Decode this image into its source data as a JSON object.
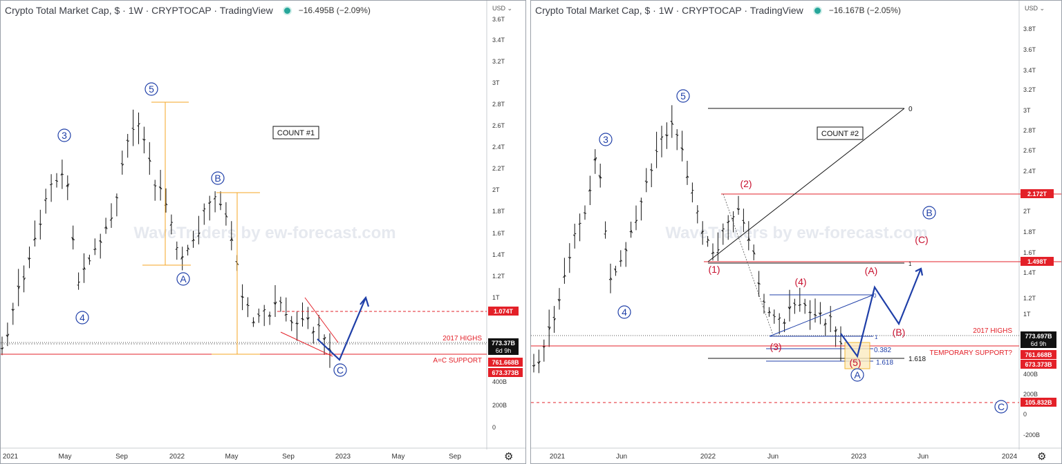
{
  "panels": [
    {
      "header": {
        "title": "Crypto Total Market Cap, $ · 1W · CRYPTOCAP · TradingView",
        "change": "−16.495B (−2.09%)"
      },
      "currency": "USD",
      "watermark": "WaveTraders by ew-forecast.com",
      "count_label": "COUNT #1",
      "y_ticks": [
        "3.6T",
        "3.4T",
        "3.2T",
        "3T",
        "2.8T",
        "2.6T",
        "2.4T",
        "2.2T",
        "2T",
        "1.8T",
        "1.6T",
        "1.4T",
        "1.2T",
        "1T",
        "400B",
        "200B",
        "0"
      ],
      "x_ticks": [
        "2021",
        "May",
        "Sep",
        "2022",
        "May",
        "Sep",
        "2023",
        "May",
        "Sep"
      ],
      "price_labels": [
        {
          "text": "1.074T",
          "color": "#e32028"
        },
        {
          "text": "773.37B",
          "sub": "6d 9h",
          "color": "#111111"
        },
        {
          "text": "761.668B",
          "color": "#e32028"
        },
        {
          "text": "673.373B",
          "color": "#e32028"
        }
      ],
      "annotations": [
        "2017 HIGHS",
        "A=C SUPPORT"
      ],
      "wave_labels": [
        "3",
        "4",
        "5",
        "A",
        "B",
        "C"
      ],
      "colors": {
        "price": "#111111",
        "wave": "#1f3fa8",
        "support": "#e32028",
        "projection": "#f5a623",
        "path": "#1f3fa8"
      }
    },
    {
      "header": {
        "title": "Crypto Total Market Cap, $ · 1W · CRYPTOCAP · TradingView",
        "change": "−16.167B (−2.05%)"
      },
      "currency": "USD",
      "watermark": "WaveTraders by ew-forecast.com",
      "count_label": "COUNT #2",
      "y_ticks": [
        "3.8T",
        "3.6T",
        "3.4T",
        "3.2T",
        "3T",
        "2.8T",
        "2.6T",
        "2.4T",
        "2T",
        "1.8T",
        "1.6T",
        "1.4T",
        "1.2T",
        "1T",
        "400B",
        "200B",
        "0",
        "-200B"
      ],
      "x_ticks": [
        "2021",
        "Jun",
        "2022",
        "Jun",
        "2023",
        "Jun",
        "2024"
      ],
      "price_labels": [
        {
          "text": "2.172T",
          "color": "#e32028"
        },
        {
          "text": "1.498T",
          "color": "#e32028"
        },
        {
          "text": "773.697B",
          "sub": "6d 9h",
          "color": "#111111"
        },
        {
          "text": "761.668B",
          "color": "#e32028"
        },
        {
          "text": "673.373B",
          "color": "#e32028"
        },
        {
          "text": "105.832B",
          "color": "#e32028"
        }
      ],
      "annotations": [
        "2017 HIGHS",
        "TEMPORARY SUPPORT?"
      ],
      "fib_labels": [
        "0",
        "1",
        "0",
        "1",
        "0.382",
        "1.618",
        "1.618"
      ],
      "wave_labels_blue": [
        "3",
        "4",
        "5",
        "A",
        "B",
        "C"
      ],
      "wave_labels_red": [
        "(1)",
        "(2)",
        "(3)",
        "(4)",
        "(5)",
        "(A)",
        "(B)",
        "(C)"
      ],
      "colors": {
        "price": "#111111",
        "wave": "#1f3fa8",
        "wave_red": "#c8102e",
        "support": "#e32028",
        "fib": "#111111",
        "projection": "#1f3fa8"
      }
    }
  ]
}
